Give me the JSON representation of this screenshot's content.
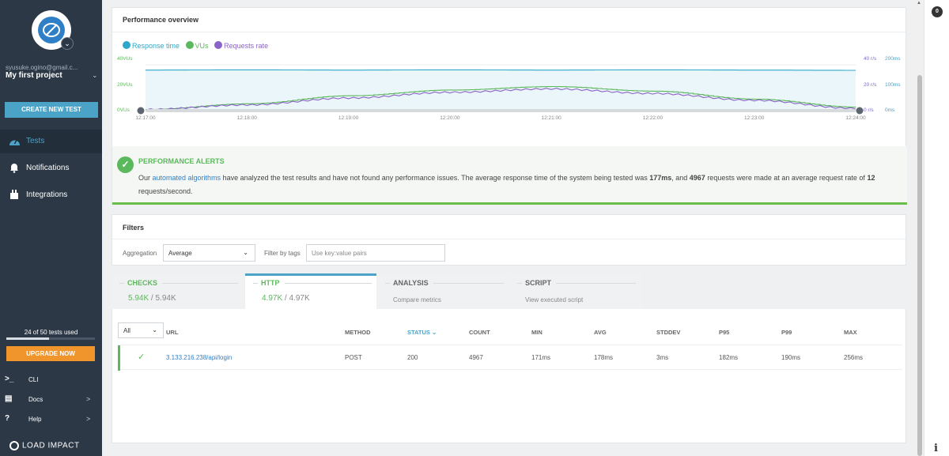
{
  "sidebar": {
    "email": "syusuke.ogino@gmail.c...",
    "project": "My first project",
    "create_button": "CREATE NEW TEST",
    "nav": [
      {
        "label": "Tests",
        "icon": "dashboard-icon"
      },
      {
        "label": "Notifications",
        "icon": "bell-icon"
      },
      {
        "label": "Integrations",
        "icon": "plug-icon"
      }
    ],
    "usage_text": "24 of 50 tests used",
    "usage_fraction": 0.48,
    "upgrade_button": "UPGRADE NOW",
    "links": [
      {
        "label": "CLI",
        "icon": ">_"
      },
      {
        "label": "Docs",
        "icon": "▤"
      },
      {
        "label": "Help",
        "icon": "?"
      }
    ],
    "brand": "LOAD IMPACT",
    "badge_icon": "⌄"
  },
  "performance": {
    "title": "Performance overview",
    "legend": [
      {
        "label": "Response time",
        "color": "#2ea8c8"
      },
      {
        "label": "VUs",
        "color": "#5cb85c"
      },
      {
        "label": "Requests rate",
        "color": "#8a63c9"
      }
    ],
    "axis_left": [
      "40VUs",
      "20VUs",
      "0VUs"
    ],
    "axis_right_rate": [
      "40 r/s",
      "20 r/s",
      "0 r/s"
    ],
    "axis_right_time": [
      "200ms",
      "100ms",
      "0ms"
    ],
    "x_ticks": [
      "12:17:00",
      "12:18:00",
      "12:19:00",
      "12:20:00",
      "12:21:00",
      "12:22:00",
      "12:23:00",
      "12:24:00"
    ]
  },
  "chart_data": {
    "type": "line",
    "x": [
      "12:17:00",
      "12:18:00",
      "12:19:00",
      "12:20:00",
      "12:21:00",
      "12:22:00",
      "12:23:00",
      "12:24:00"
    ],
    "series": [
      {
        "name": "Response time",
        "values": [
          177,
          178,
          177,
          178,
          177,
          178,
          177,
          176
        ]
      },
      {
        "name": "VUs",
        "values": [
          1,
          6,
          13,
          18,
          21,
          17,
          10,
          3
        ]
      },
      {
        "name": "Requests rate",
        "values": [
          1,
          5,
          11,
          16,
          19,
          15,
          9,
          2
        ]
      }
    ],
    "ylabel_left": "VUs",
    "ylim_left": [
      0,
      40
    ],
    "ylim_rate": [
      0,
      40
    ],
    "ylim_time": [
      0,
      200
    ],
    "legend_position": "top-left"
  },
  "alerts": {
    "title": "PERFORMANCE ALERTS",
    "text_before_link": "Our ",
    "link": "automated algorithms",
    "text_1": " have analyzed the test results and have not found any performance issues. The average response time of the system being tested was ",
    "avg_response": "177ms",
    "text_2": ", and ",
    "requests": "4967",
    "text_3": " requests were made at an average request rate of ",
    "rate": "12",
    "text_4": " requests/second."
  },
  "filters": {
    "title": "Filters",
    "aggregation_label": "Aggregation",
    "aggregation_value": "Average",
    "tags_label": "Filter by tags",
    "tags_placeholder": "Use key:value pairs"
  },
  "tabs": [
    {
      "title": "CHECKS",
      "value": "5.94K",
      "total": " / 5.94K"
    },
    {
      "title": "HTTP",
      "value": "4.97K",
      "total": " / 4.97K"
    },
    {
      "title": "ANALYSIS",
      "sub": "Compare metrics"
    },
    {
      "title": "SCRIPT",
      "sub": "View executed script"
    }
  ],
  "table": {
    "filter_value": "All",
    "headers": [
      "URL",
      "METHOD",
      "STATUS",
      "COUNT",
      "MIN",
      "AVG",
      "STDDEV",
      "P95",
      "P99",
      "MAX"
    ],
    "sort_icon": "⌄",
    "rows": [
      {
        "url": "3.133.216.238/api/login",
        "method": "POST",
        "status": "200",
        "count": "4967",
        "min": "171ms",
        "avg": "178ms",
        "stddev": "3ms",
        "p95": "182ms",
        "p99": "190ms",
        "max": "256ms"
      }
    ]
  },
  "right_panel": {
    "badge": "0",
    "info": "i"
  }
}
